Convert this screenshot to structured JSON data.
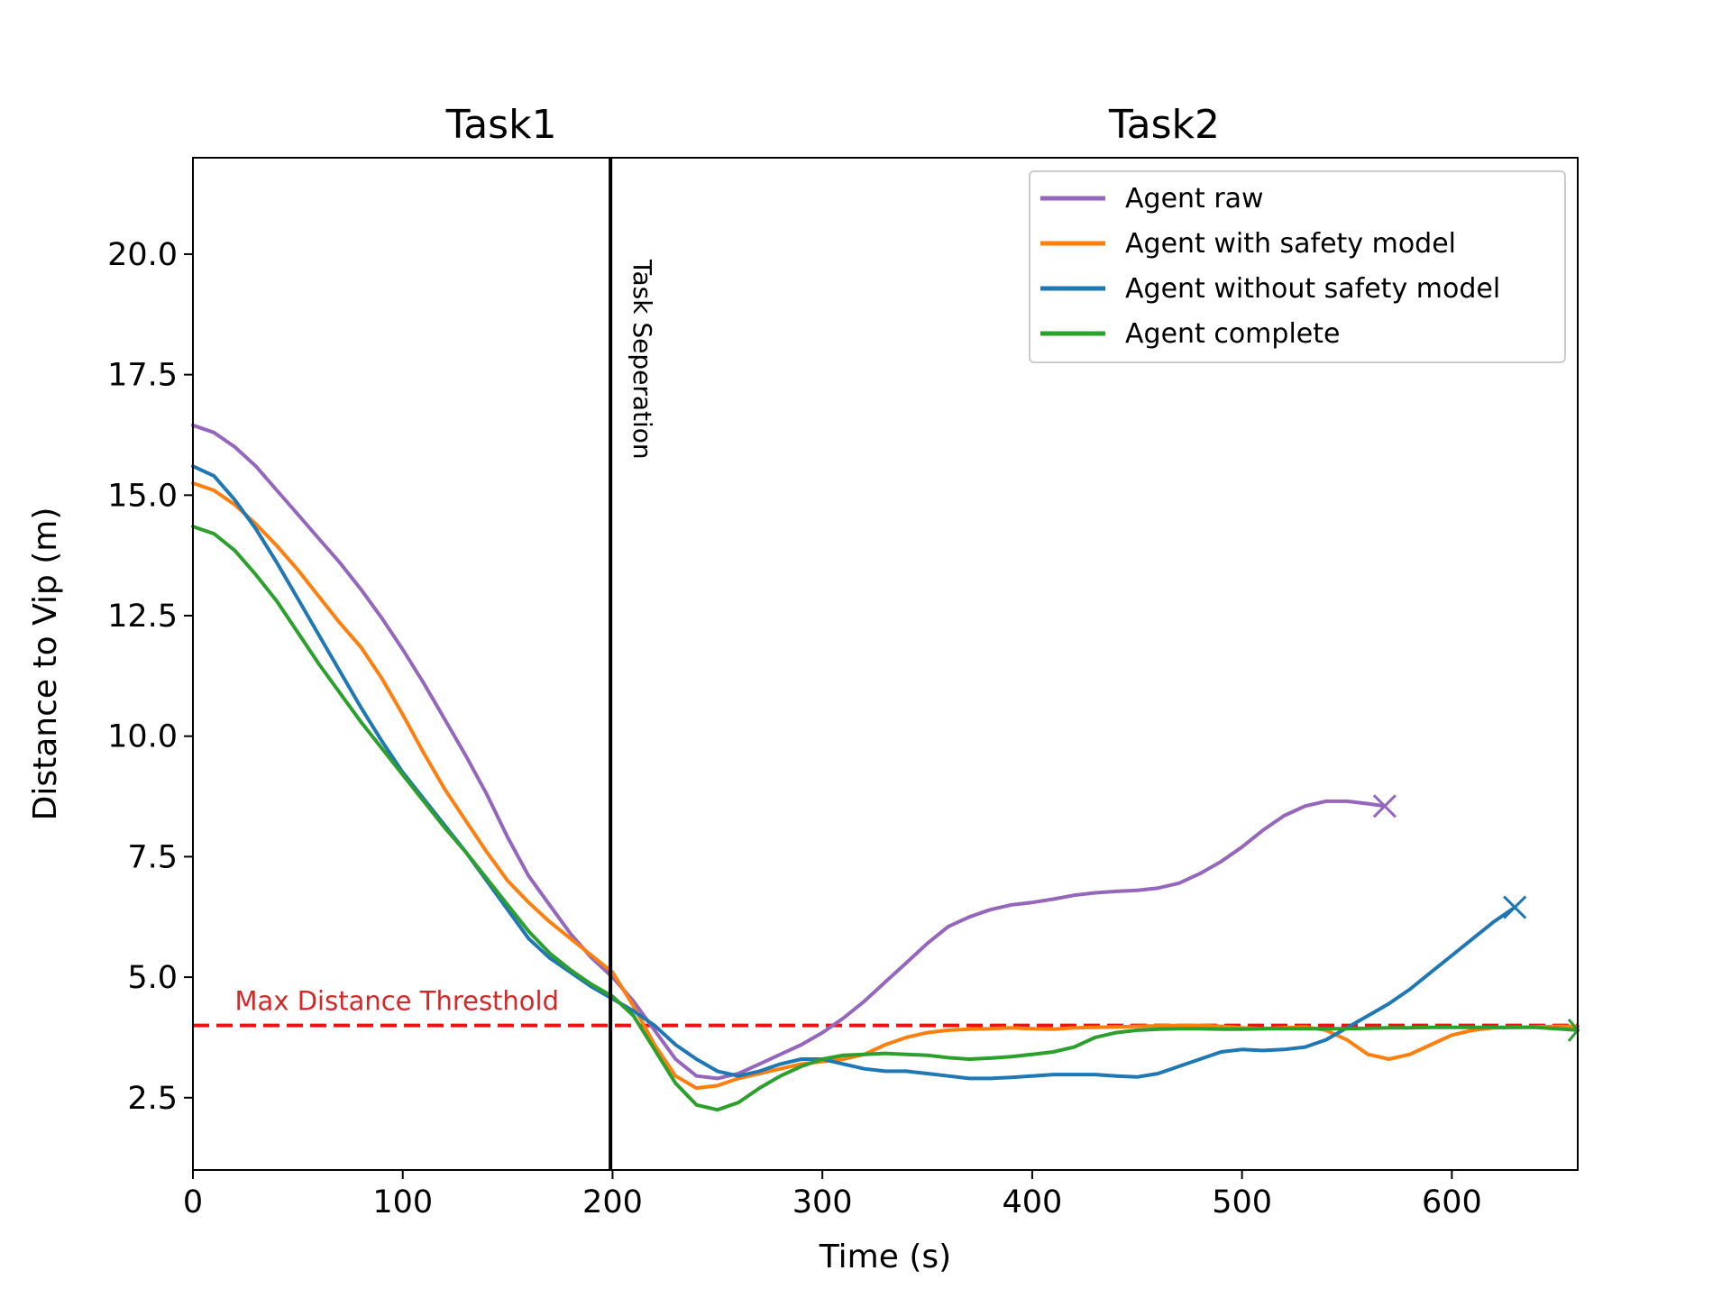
{
  "chart_data": {
    "type": "line",
    "xlabel": "Time (s)",
    "ylabel": "Distance to Vip (m)",
    "xlim": [
      0,
      660
    ],
    "ylim": [
      1.0,
      22.0
    ],
    "x_ticks": [
      0,
      100,
      200,
      300,
      400,
      500,
      600
    ],
    "y_ticks": [
      2.5,
      5.0,
      7.5,
      10.0,
      12.5,
      15.0,
      17.5,
      20.0
    ],
    "x_tick_labels": [
      "0",
      "100",
      "200",
      "300",
      "400",
      "500",
      "600"
    ],
    "y_tick_labels": [
      "2.5",
      "5.0",
      "7.5",
      "10.0",
      "12.5",
      "15.0",
      "17.5",
      "20.0"
    ],
    "grid": false,
    "legend_position": "top-right",
    "section_labels": [
      {
        "text": "Task1",
        "x": 147
      },
      {
        "text": "Task2",
        "x": 463
      }
    ],
    "separator": {
      "x": 199,
      "label": "Task Seperation",
      "color": "#000000"
    },
    "threshold": {
      "y": 4.0,
      "label": "Max Distance Thresthold",
      "color": "#ee1111"
    },
    "series": [
      {
        "name": "Agent raw",
        "color": "#9467bd",
        "end_marker": "x",
        "x": [
          0,
          10,
          20,
          30,
          40,
          50,
          60,
          70,
          80,
          90,
          100,
          110,
          120,
          130,
          140,
          150,
          160,
          170,
          180,
          190,
          200,
          210,
          220,
          230,
          240,
          250,
          260,
          270,
          280,
          290,
          300,
          310,
          320,
          330,
          340,
          350,
          360,
          370,
          380,
          390,
          400,
          410,
          420,
          430,
          440,
          450,
          460,
          470,
          480,
          490,
          500,
          510,
          520,
          530,
          540,
          550,
          560,
          568
        ],
        "y": [
          16.45,
          16.3,
          16.0,
          15.6,
          15.1,
          14.6,
          14.1,
          13.6,
          13.05,
          12.45,
          11.8,
          11.1,
          10.35,
          9.6,
          8.8,
          7.9,
          7.1,
          6.5,
          5.9,
          5.4,
          5.0,
          4.5,
          3.9,
          3.3,
          2.95,
          2.9,
          3.0,
          3.2,
          3.4,
          3.6,
          3.85,
          4.15,
          4.5,
          4.9,
          5.3,
          5.7,
          6.05,
          6.25,
          6.4,
          6.5,
          6.55,
          6.62,
          6.7,
          6.75,
          6.78,
          6.8,
          6.85,
          6.95,
          7.15,
          7.4,
          7.7,
          8.05,
          8.35,
          8.55,
          8.65,
          8.65,
          8.6,
          8.55
        ]
      },
      {
        "name": "Agent with safety model",
        "color": "#ff7f0e",
        "x": [
          0,
          10,
          20,
          30,
          40,
          50,
          60,
          70,
          80,
          90,
          100,
          110,
          120,
          130,
          140,
          150,
          160,
          170,
          180,
          190,
          200,
          210,
          220,
          230,
          240,
          250,
          260,
          270,
          280,
          290,
          300,
          310,
          320,
          330,
          340,
          350,
          360,
          370,
          380,
          390,
          400,
          410,
          420,
          430,
          440,
          450,
          460,
          470,
          480,
          490,
          500,
          510,
          520,
          530,
          540,
          550,
          560,
          570,
          580,
          590,
          600,
          610,
          620,
          630,
          640,
          650,
          660
        ],
        "y": [
          15.25,
          15.1,
          14.8,
          14.4,
          13.95,
          13.45,
          12.9,
          12.35,
          11.85,
          11.2,
          10.45,
          9.65,
          8.9,
          8.25,
          7.6,
          7.0,
          6.55,
          6.15,
          5.8,
          5.45,
          5.1,
          4.4,
          3.6,
          2.95,
          2.7,
          2.75,
          2.9,
          3.0,
          3.1,
          3.2,
          3.25,
          3.3,
          3.4,
          3.6,
          3.75,
          3.85,
          3.9,
          3.92,
          3.93,
          3.95,
          3.93,
          3.92,
          3.95,
          3.96,
          3.97,
          3.98,
          3.99,
          4.0,
          4.0,
          3.98,
          3.95,
          3.93,
          3.95,
          3.97,
          3.9,
          3.7,
          3.4,
          3.3,
          3.4,
          3.6,
          3.8,
          3.9,
          3.95,
          3.96,
          3.97,
          3.98,
          3.98
        ]
      },
      {
        "name": "Agent without safety model",
        "color": "#1f77b4",
        "end_marker": "x",
        "x": [
          0,
          10,
          20,
          30,
          40,
          50,
          60,
          70,
          80,
          90,
          100,
          110,
          120,
          130,
          140,
          150,
          160,
          170,
          180,
          190,
          200,
          210,
          220,
          230,
          240,
          250,
          260,
          270,
          280,
          290,
          300,
          310,
          320,
          330,
          340,
          350,
          360,
          370,
          380,
          390,
          400,
          410,
          420,
          430,
          440,
          450,
          460,
          470,
          480,
          490,
          500,
          510,
          520,
          530,
          540,
          550,
          560,
          570,
          580,
          590,
          600,
          610,
          620,
          630
        ],
        "y": [
          15.6,
          15.4,
          14.9,
          14.3,
          13.6,
          12.85,
          12.1,
          11.35,
          10.6,
          9.9,
          9.25,
          8.7,
          8.15,
          7.6,
          7.0,
          6.4,
          5.8,
          5.4,
          5.1,
          4.8,
          4.55,
          4.3,
          4.0,
          3.6,
          3.3,
          3.05,
          2.95,
          3.05,
          3.2,
          3.3,
          3.3,
          3.2,
          3.1,
          3.05,
          3.05,
          3.0,
          2.95,
          2.9,
          2.9,
          2.92,
          2.95,
          2.98,
          2.98,
          2.98,
          2.95,
          2.93,
          3.0,
          3.15,
          3.3,
          3.45,
          3.5,
          3.48,
          3.5,
          3.55,
          3.7,
          3.95,
          4.2,
          4.45,
          4.75,
          5.1,
          5.45,
          5.8,
          6.15,
          6.45
        ]
      },
      {
        "name": "Agent complete",
        "color": "#2ca02c",
        "end_marker": "arrow",
        "x": [
          0,
          10,
          20,
          30,
          40,
          50,
          60,
          70,
          80,
          90,
          100,
          110,
          120,
          130,
          140,
          150,
          160,
          170,
          180,
          190,
          200,
          210,
          220,
          230,
          240,
          250,
          260,
          270,
          280,
          290,
          300,
          310,
          320,
          330,
          340,
          350,
          360,
          370,
          380,
          390,
          400,
          410,
          420,
          430,
          440,
          450,
          460,
          470,
          480,
          490,
          500,
          510,
          520,
          530,
          540,
          550,
          560,
          570,
          580,
          590,
          600,
          610,
          620,
          630,
          640,
          650,
          660
        ],
        "y": [
          14.35,
          14.2,
          13.85,
          13.35,
          12.8,
          12.15,
          11.5,
          10.9,
          10.3,
          9.75,
          9.2,
          8.65,
          8.1,
          7.6,
          7.05,
          6.5,
          5.95,
          5.5,
          5.15,
          4.85,
          4.6,
          4.2,
          3.5,
          2.8,
          2.35,
          2.25,
          2.4,
          2.7,
          2.95,
          3.15,
          3.3,
          3.38,
          3.4,
          3.42,
          3.4,
          3.38,
          3.33,
          3.3,
          3.32,
          3.35,
          3.4,
          3.45,
          3.55,
          3.75,
          3.85,
          3.9,
          3.92,
          3.93,
          3.93,
          3.92,
          3.92,
          3.93,
          3.93,
          3.93,
          3.93,
          3.93,
          3.94,
          3.95,
          3.95,
          3.96,
          3.96,
          3.96,
          3.96,
          3.96,
          3.96,
          3.93,
          3.9
        ]
      }
    ]
  }
}
